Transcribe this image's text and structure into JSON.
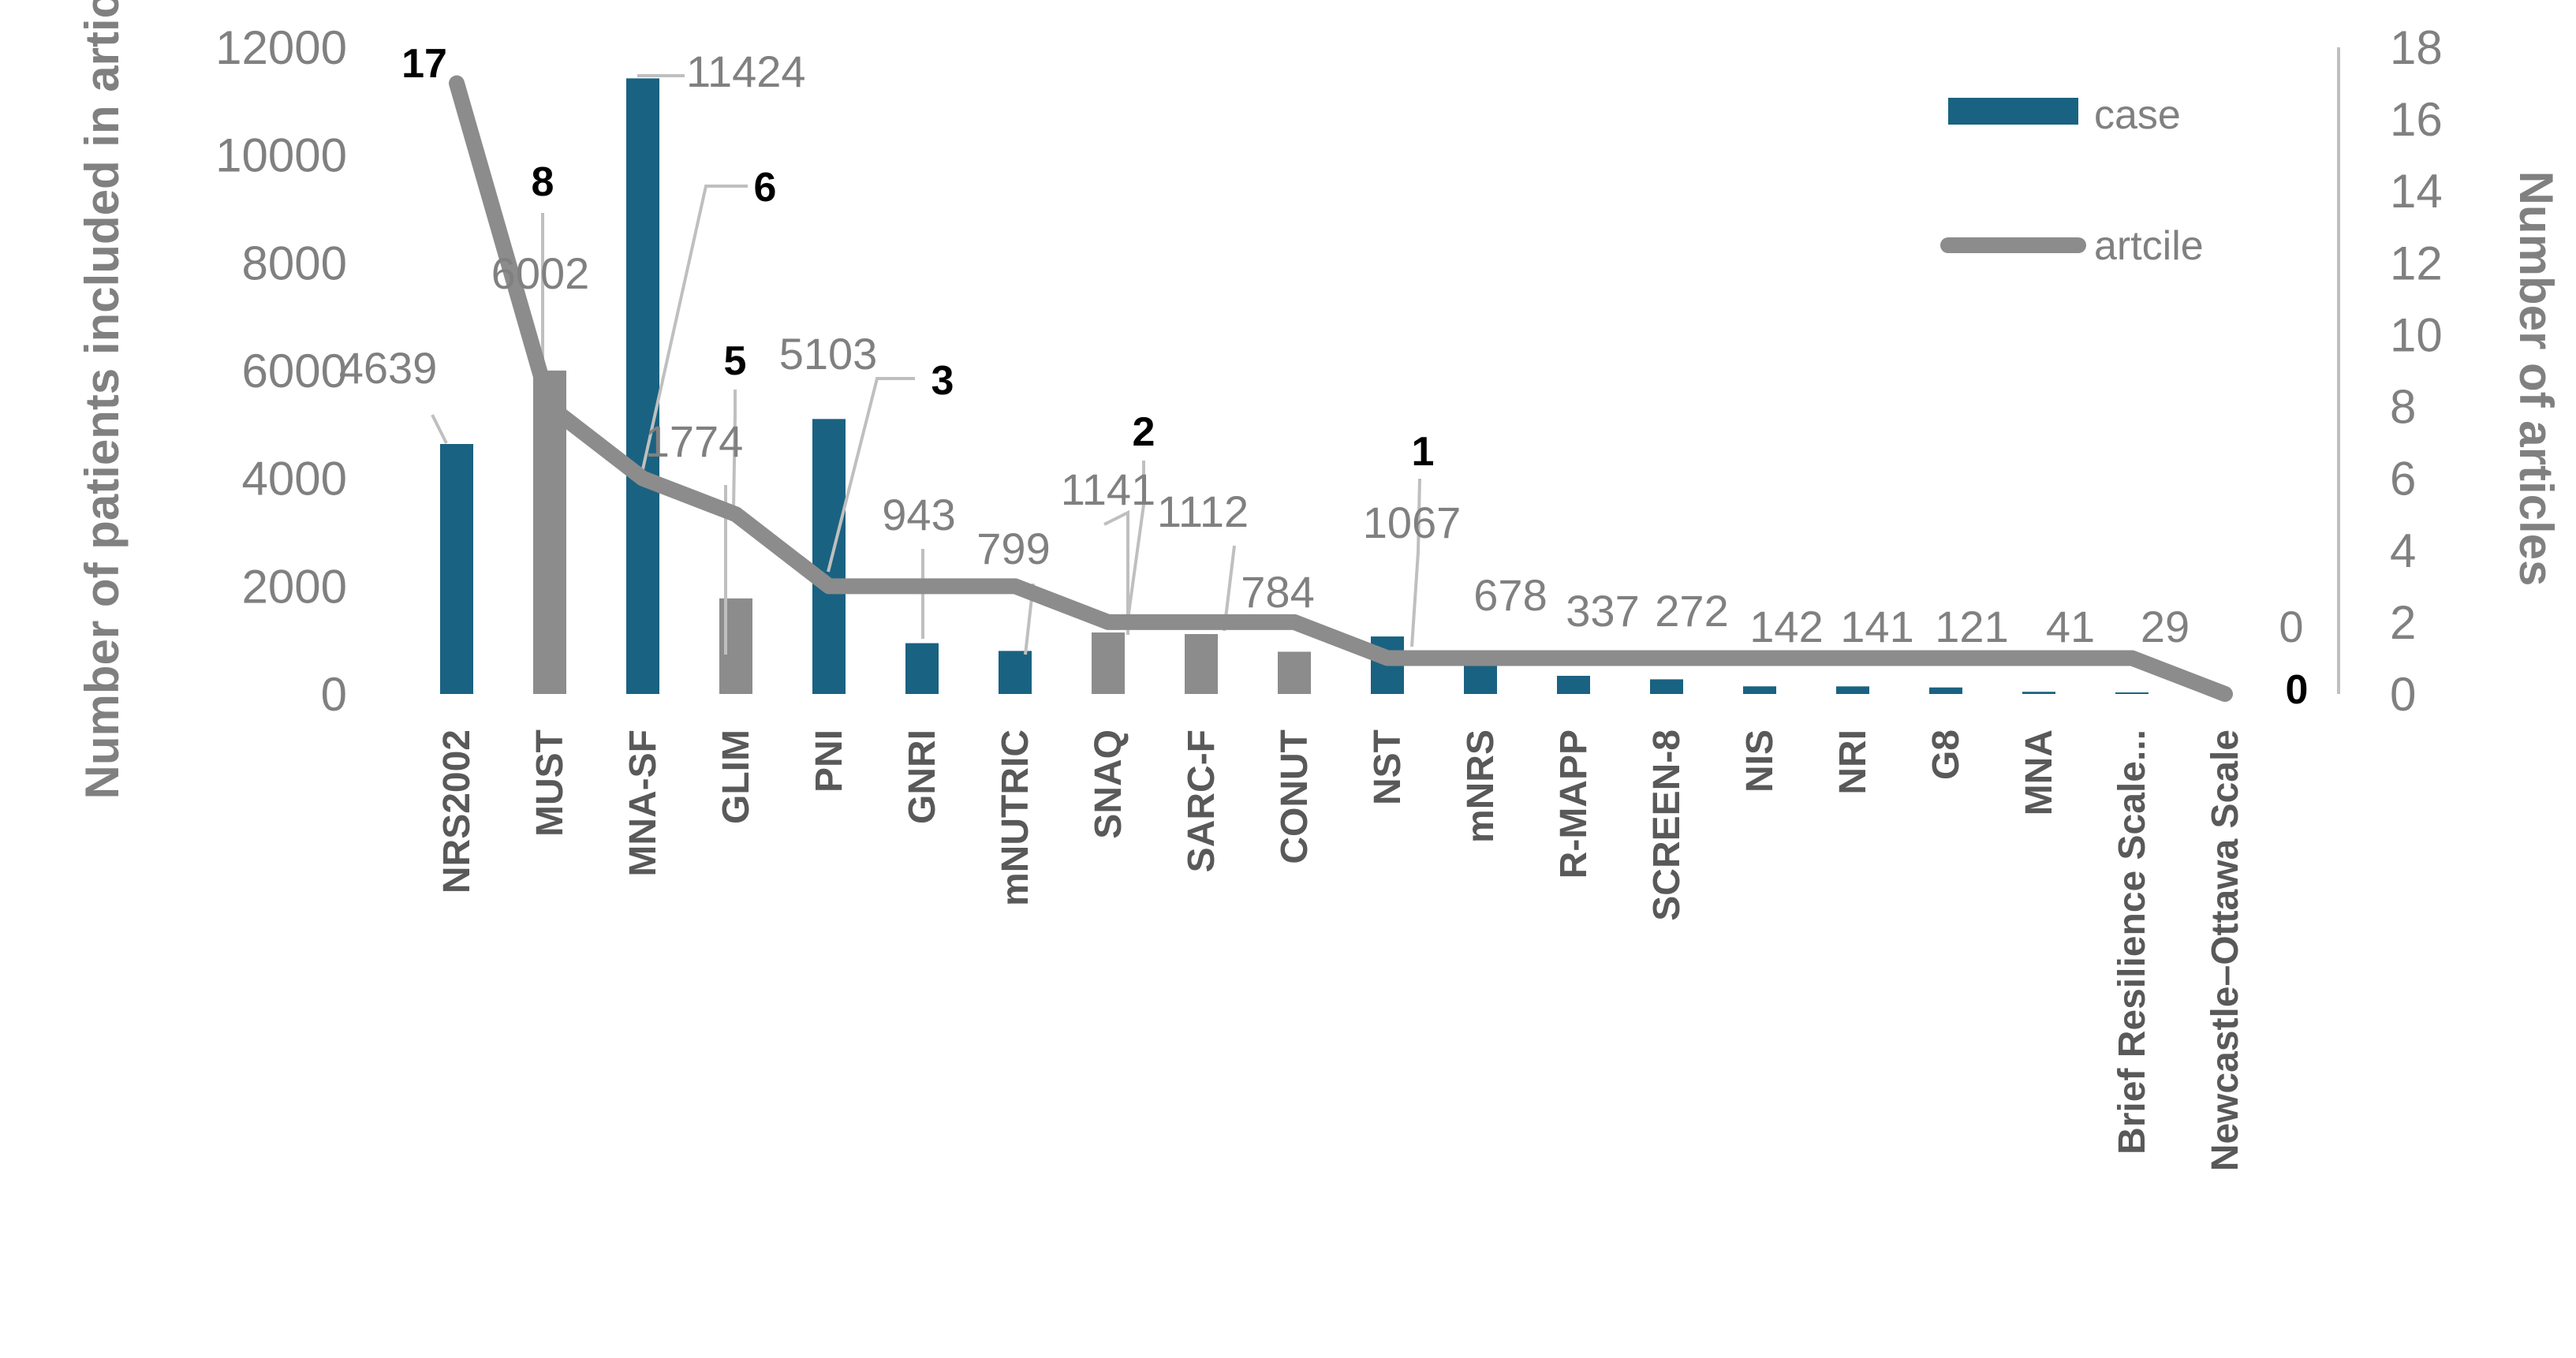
{
  "chart_data": {
    "type": "bar",
    "categories": [
      "NRS2002",
      "MUST",
      "MNA-SF",
      "GLIM",
      "PNI",
      "GNRI",
      "mNUTRIC",
      "SNAQ",
      "SARC-F",
      "CONUT",
      "NST",
      "mNRS",
      "R-MAPP",
      "SCREEN-8",
      "NIS",
      "NRI",
      "G8",
      "MNA",
      "Brief Resilience Scale...",
      "Newcastle–Ottawa Scale"
    ],
    "series": [
      {
        "name": "case",
        "kind": "bar",
        "axis": "left",
        "color": "#1a6281",
        "alt_color": "#8c8c8c",
        "values": [
          4639,
          6002,
          11424,
          1774,
          5103,
          943,
          799,
          1141,
          1112,
          784,
          1067,
          678,
          337,
          272,
          142,
          141,
          121,
          41,
          29,
          0
        ],
        "labels": [
          "4639",
          "6002",
          "11424",
          "1774",
          "5103",
          "943",
          "799",
          "1141",
          "1112",
          "784",
          "1067",
          "678",
          "337",
          "272",
          "142",
          "141",
          "121",
          "41",
          "29",
          "0"
        ]
      },
      {
        "name": "artcile",
        "kind": "line",
        "axis": "right",
        "color": "#8c8c8c",
        "values": [
          17,
          8,
          6,
          5,
          3,
          3,
          3,
          2,
          2,
          2,
          1,
          1,
          1,
          1,
          1,
          1,
          1,
          1,
          1,
          0
        ],
        "labels": [
          "17",
          "8",
          "6",
          "5",
          "3",
          "2",
          "1",
          "0"
        ]
      }
    ],
    "bar_colors": [
      "#1a6281",
      "#8c8c8c",
      "#1a6281",
      "#8c8c8c",
      "#1a6281",
      "#1a6281",
      "#1a6281",
      "#8c8c8c",
      "#8c8c8c",
      "#8c8c8c",
      "#1a6281",
      "#1a6281",
      "#1a6281",
      "#1a6281",
      "#1a6281",
      "#1a6281",
      "#1a6281",
      "#1a6281",
      "#1a6281",
      "#1a6281"
    ],
    "ylabel_left": "Number of patients included in articles",
    "ylabel_right": "Number of articles",
    "yticks_left": [
      "0",
      "2000",
      "4000",
      "6000",
      "8000",
      "10000",
      "12000"
    ],
    "yticks_right": [
      "0",
      "2",
      "4",
      "6",
      "8",
      "10",
      "12",
      "14",
      "16",
      "18"
    ],
    "ylim_left": [
      0,
      12000
    ],
    "ylim_right": [
      0,
      18
    ],
    "grid": false,
    "legend": {
      "position": "top-right",
      "entries": [
        "case",
        "artcile"
      ]
    }
  }
}
